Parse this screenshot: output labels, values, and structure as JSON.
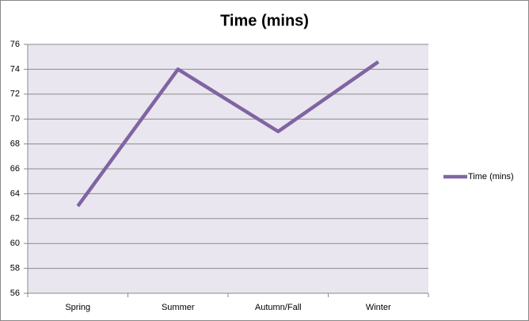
{
  "chart_data": {
    "type": "line",
    "title": "Time (mins)",
    "categories": [
      "Spring",
      "Summer",
      "Autumn/Fall",
      "Winter"
    ],
    "series": [
      {
        "name": "Time (mins)",
        "color": "#8064a2",
        "values": [
          63,
          74,
          69,
          74.6
        ]
      }
    ],
    "ylim": [
      56,
      76
    ],
    "yticks": [
      56,
      58,
      60,
      62,
      64,
      66,
      68,
      70,
      72,
      74,
      76
    ],
    "grid": true,
    "legend": "right"
  }
}
